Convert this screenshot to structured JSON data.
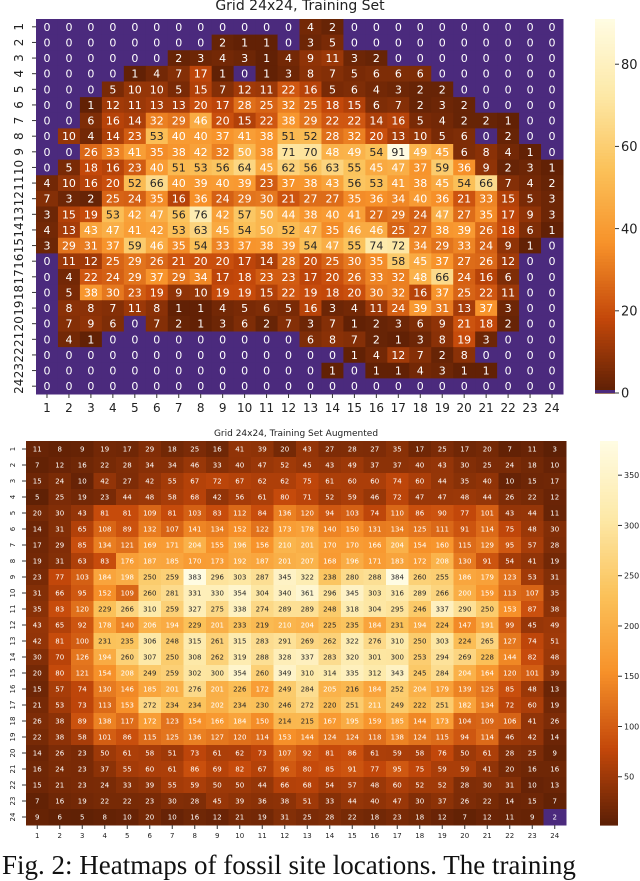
{
  "chart_data": [
    {
      "type": "heatmap",
      "title": "Grid 24x24, Training Set",
      "x_ticks": [
        "1",
        "2",
        "3",
        "4",
        "5",
        "6",
        "7",
        "8",
        "9",
        "10",
        "11",
        "12",
        "13",
        "14",
        "15",
        "16",
        "17",
        "18",
        "19",
        "20",
        "21",
        "22",
        "23",
        "24"
      ],
      "y_ticks": [
        "1",
        "2",
        "3",
        "4",
        "5",
        "6",
        "7",
        "8",
        "9",
        "10",
        "11",
        "12",
        "13",
        "14",
        "15",
        "16",
        "17",
        "18",
        "19",
        "20",
        "21",
        "22",
        "23",
        "24"
      ],
      "colorbar_ticks": [
        0,
        20,
        40,
        60,
        80
      ],
      "vmin": 0,
      "vmax": 91,
      "zero_color": "#4b2a7d",
      "colormap": [
        "#5c1f05",
        "#c4480a",
        "#f7922a",
        "#fbc25a",
        "#fde9a8",
        "#fffce3"
      ],
      "values": [
        [
          0,
          0,
          0,
          0,
          0,
          0,
          0,
          0,
          0,
          0,
          0,
          0,
          4,
          2,
          0,
          0,
          0,
          0,
          0,
          0,
          0,
          0,
          0,
          0
        ],
        [
          0,
          0,
          0,
          0,
          0,
          0,
          0,
          0,
          2,
          1,
          1,
          0,
          3,
          5,
          0,
          0,
          0,
          0,
          0,
          0,
          0,
          0,
          0,
          0
        ],
        [
          0,
          0,
          0,
          0,
          0,
          0,
          2,
          3,
          4,
          3,
          1,
          4,
          9,
          11,
          3,
          2,
          0,
          0,
          0,
          0,
          0,
          0,
          0,
          0
        ],
        [
          0,
          0,
          0,
          0,
          1,
          4,
          7,
          17,
          1,
          0,
          1,
          3,
          8,
          7,
          5,
          6,
          6,
          6,
          0,
          0,
          0,
          0,
          0,
          0
        ],
        [
          0,
          0,
          0,
          5,
          10,
          10,
          5,
          15,
          7,
          12,
          11,
          22,
          16,
          5,
          6,
          4,
          3,
          2,
          2,
          0,
          0,
          0,
          0,
          0
        ],
        [
          0,
          0,
          1,
          12,
          11,
          13,
          13,
          20,
          17,
          28,
          25,
          32,
          25,
          18,
          15,
          6,
          7,
          2,
          3,
          2,
          0,
          0,
          0,
          0
        ],
        [
          0,
          0,
          6,
          16,
          14,
          32,
          29,
          46,
          20,
          15,
          22,
          38,
          29,
          22,
          22,
          14,
          16,
          5,
          4,
          2,
          2,
          1,
          0,
          0
        ],
        [
          0,
          10,
          4,
          14,
          23,
          53,
          40,
          40,
          37,
          41,
          38,
          51,
          52,
          28,
          32,
          20,
          13,
          10,
          5,
          6,
          0,
          2,
          0,
          0
        ],
        [
          0,
          0,
          26,
          33,
          41,
          35,
          38,
          42,
          32,
          50,
          38,
          71,
          70,
          48,
          49,
          54,
          91,
          49,
          45,
          6,
          8,
          4,
          1,
          0
        ],
        [
          0,
          5,
          18,
          16,
          23,
          40,
          51,
          53,
          56,
          64,
          45,
          62,
          56,
          63,
          55,
          45,
          47,
          37,
          59,
          36,
          9,
          2,
          3,
          1
        ],
        [
          4,
          10,
          16,
          20,
          52,
          66,
          40,
          39,
          40,
          39,
          23,
          37,
          38,
          43,
          56,
          53,
          41,
          38,
          45,
          54,
          66,
          7,
          4,
          2
        ],
        [
          7,
          3,
          2,
          25,
          24,
          35,
          16,
          36,
          24,
          29,
          30,
          21,
          27,
          27,
          35,
          36,
          34,
          40,
          36,
          21,
          33,
          15,
          5,
          3
        ],
        [
          3,
          15,
          19,
          53,
          42,
          47,
          56,
          76,
          42,
          57,
          50,
          44,
          38,
          40,
          41,
          27,
          29,
          24,
          47,
          27,
          35,
          17,
          9,
          3
        ],
        [
          4,
          13,
          43,
          47,
          41,
          42,
          53,
          63,
          45,
          54,
          50,
          52,
          47,
          35,
          46,
          46,
          25,
          27,
          38,
          39,
          26,
          18,
          6,
          1
        ],
        [
          3,
          29,
          31,
          37,
          59,
          46,
          35,
          54,
          33,
          37,
          38,
          39,
          54,
          47,
          55,
          74,
          72,
          34,
          29,
          33,
          24,
          9,
          1,
          0
        ],
        [
          0,
          11,
          12,
          25,
          29,
          26,
          21,
          20,
          20,
          17,
          14,
          28,
          20,
          25,
          30,
          35,
          58,
          45,
          37,
          27,
          26,
          12,
          0,
          0
        ],
        [
          0,
          4,
          22,
          24,
          29,
          37,
          29,
          34,
          17,
          18,
          23,
          23,
          17,
          20,
          26,
          33,
          32,
          48,
          66,
          24,
          16,
          6,
          0,
          0
        ],
        [
          0,
          5,
          38,
          30,
          23,
          19,
          9,
          10,
          19,
          19,
          15,
          22,
          19,
          18,
          20,
          30,
          32,
          16,
          37,
          25,
          22,
          11,
          0,
          0
        ],
        [
          0,
          8,
          8,
          7,
          11,
          8,
          1,
          1,
          4,
          5,
          6,
          5,
          16,
          3,
          4,
          11,
          24,
          39,
          31,
          13,
          37,
          3,
          0,
          0
        ],
        [
          0,
          7,
          9,
          6,
          0,
          7,
          2,
          1,
          3,
          6,
          2,
          7,
          3,
          7,
          1,
          2,
          3,
          6,
          9,
          21,
          18,
          2,
          0,
          0
        ],
        [
          0,
          4,
          1,
          0,
          0,
          0,
          0,
          0,
          0,
          0,
          0,
          0,
          6,
          8,
          7,
          2,
          1,
          3,
          8,
          19,
          3,
          0,
          0,
          0
        ],
        [
          0,
          0,
          0,
          0,
          0,
          0,
          0,
          0,
          0,
          0,
          0,
          0,
          0,
          0,
          1,
          4,
          12,
          7,
          2,
          8,
          0,
          0,
          0,
          0
        ],
        [
          0,
          0,
          0,
          0,
          0,
          0,
          0,
          0,
          0,
          0,
          0,
          0,
          0,
          1,
          0,
          1,
          1,
          4,
          3,
          1,
          1,
          0,
          0,
          0
        ],
        [
          0,
          0,
          0,
          0,
          0,
          0,
          0,
          0,
          0,
          0,
          0,
          0,
          0,
          0,
          0,
          0,
          0,
          0,
          0,
          0,
          0,
          0,
          0,
          0
        ]
      ]
    },
    {
      "type": "heatmap",
      "title": "Grid 24x24, Training Set Augmented",
      "x_ticks": [
        "1",
        "2",
        "3",
        "4",
        "5",
        "6",
        "7",
        "8",
        "9",
        "10",
        "11",
        "12",
        "13",
        "14",
        "15",
        "16",
        "17",
        "18",
        "19",
        "20",
        "21",
        "22",
        "23",
        "24"
      ],
      "y_ticks": [
        "1",
        "2",
        "3",
        "4",
        "5",
        "6",
        "7",
        "8",
        "9",
        "10",
        "11",
        "12",
        "13",
        "14",
        "15",
        "16",
        "17",
        "18",
        "19",
        "20",
        "21",
        "22",
        "23",
        "24"
      ],
      "colorbar_ticks": [
        50,
        100,
        150,
        200,
        250,
        300,
        350
      ],
      "vmin": 2,
      "vmax": 384,
      "under_color": "#4b2a7d",
      "colormap": [
        "#5c1f05",
        "#c4480a",
        "#f7922a",
        "#fbc25a",
        "#fde9a8",
        "#fffce3"
      ],
      "values": [
        [
          11,
          8,
          9,
          19,
          17,
          29,
          18,
          25,
          16,
          41,
          39,
          20,
          43,
          27,
          28,
          27,
          35,
          17,
          25,
          17,
          20,
          7,
          11,
          3
        ],
        [
          7,
          12,
          16,
          22,
          28,
          34,
          34,
          46,
          33,
          40,
          47,
          52,
          45,
          43,
          49,
          37,
          37,
          40,
          43,
          30,
          25,
          24,
          18,
          10
        ],
        [
          15,
          24,
          10,
          42,
          27,
          42,
          55,
          67,
          72,
          67,
          62,
          62,
          75,
          61,
          60,
          60,
          74,
          60,
          44,
          35,
          40,
          10,
          15,
          17
        ],
        [
          5,
          25,
          19,
          23,
          44,
          48,
          58,
          68,
          42,
          56,
          61,
          80,
          71,
          52,
          59,
          46,
          72,
          47,
          47,
          48,
          44,
          26,
          22,
          12
        ],
        [
          20,
          30,
          43,
          81,
          81,
          109,
          81,
          103,
          83,
          112,
          84,
          136,
          120,
          94,
          103,
          74,
          110,
          86,
          90,
          77,
          101,
          43,
          44,
          11
        ],
        [
          14,
          31,
          65,
          108,
          89,
          132,
          107,
          141,
          134,
          152,
          122,
          173,
          178,
          140,
          150,
          131,
          134,
          125,
          111,
          91,
          114,
          75,
          48,
          30
        ],
        [
          17,
          29,
          85,
          134,
          121,
          169,
          171,
          204,
          155,
          196,
          156,
          210,
          201,
          170,
          170,
          166,
          204,
          154,
          160,
          115,
          129,
          95,
          57,
          28
        ],
        [
          19,
          31,
          63,
          83,
          176,
          187,
          185,
          170,
          173,
          192,
          187,
          201,
          207,
          168,
          196,
          171,
          183,
          172,
          208,
          130,
          91,
          54,
          41,
          19
        ],
        [
          23,
          77,
          103,
          184,
          198,
          250,
          259,
          383,
          296,
          303,
          287,
          345,
          322,
          238,
          280,
          288,
          384,
          260,
          255,
          186,
          179,
          123,
          53,
          31
        ],
        [
          31,
          66,
          95,
          152,
          109,
          260,
          281,
          331,
          330,
          354,
          304,
          340,
          361,
          296,
          345,
          303,
          316,
          289,
          266,
          200,
          159,
          113,
          107,
          35
        ],
        [
          35,
          83,
          120,
          229,
          266,
          310,
          259,
          327,
          275,
          338,
          274,
          289,
          289,
          248,
          318,
          304,
          295,
          246,
          337,
          290,
          250,
          153,
          87,
          38
        ],
        [
          43,
          65,
          92,
          178,
          140,
          206,
          194,
          229,
          201,
          233,
          219,
          210,
          204,
          225,
          235,
          184,
          231,
          194,
          224,
          147,
          191,
          99,
          45,
          49
        ],
        [
          42,
          81,
          100,
          231,
          235,
          306,
          248,
          315,
          261,
          315,
          283,
          291,
          269,
          262,
          322,
          276,
          310,
          250,
          303,
          224,
          265,
          127,
          74,
          51
        ],
        [
          30,
          70,
          126,
          194,
          260,
          307,
          250,
          308,
          262,
          319,
          288,
          328,
          337,
          283,
          320,
          301,
          300,
          253,
          294,
          269,
          228,
          144,
          82,
          48
        ],
        [
          20,
          80,
          121,
          154,
          208,
          249,
          259,
          302,
          300,
          354,
          260,
          349,
          310,
          314,
          335,
          312,
          343,
          245,
          284,
          204,
          164,
          120,
          101,
          39
        ],
        [
          15,
          57,
          74,
          130,
          146,
          185,
          201,
          276,
          201,
          226,
          172,
          249,
          284,
          205,
          216,
          184,
          252,
          204,
          179,
          139,
          125,
          85,
          48,
          13
        ],
        [
          21,
          53,
          73,
          113,
          153,
          272,
          234,
          234,
          202,
          234,
          230,
          246,
          272,
          220,
          251,
          211,
          249,
          222,
          251,
          182,
          134,
          72,
          60,
          19
        ],
        [
          26,
          38,
          89,
          138,
          117,
          172,
          123,
          154,
          166,
          184,
          150,
          214,
          215,
          167,
          195,
          159,
          185,
          144,
          173,
          104,
          109,
          106,
          41,
          26
        ],
        [
          22,
          38,
          58,
          101,
          86,
          115,
          125,
          136,
          127,
          120,
          114,
          153,
          144,
          124,
          124,
          118,
          138,
          124,
          115,
          94,
          114,
          46,
          42,
          14
        ],
        [
          14,
          26,
          23,
          50,
          61,
          58,
          51,
          73,
          61,
          62,
          73,
          107,
          92,
          81,
          86,
          61,
          59,
          58,
          76,
          50,
          61,
          28,
          25,
          9
        ],
        [
          16,
          24,
          23,
          37,
          55,
          60,
          61,
          86,
          69,
          82,
          67,
          96,
          80,
          85,
          91,
          77,
          95,
          75,
          59,
          59,
          41,
          20,
          16,
          16
        ],
        [
          15,
          21,
          23,
          24,
          33,
          39,
          55,
          59,
          50,
          50,
          44,
          66,
          68,
          54,
          57,
          48,
          60,
          52,
          52,
          28,
          30,
          31,
          10,
          13
        ],
        [
          7,
          16,
          19,
          22,
          22,
          23,
          30,
          28,
          45,
          39,
          36,
          38,
          51,
          33,
          44,
          40,
          47,
          30,
          37,
          26,
          22,
          14,
          15,
          7
        ],
        [
          9,
          6,
          5,
          8,
          10,
          20,
          10,
          16,
          12,
          21,
          19,
          31,
          25,
          28,
          22,
          18,
          23,
          18,
          12,
          7,
          12,
          11,
          9,
          2
        ]
      ]
    }
  ],
  "caption": "Fig. 2: Heatmaps of fossil site locations. The training"
}
